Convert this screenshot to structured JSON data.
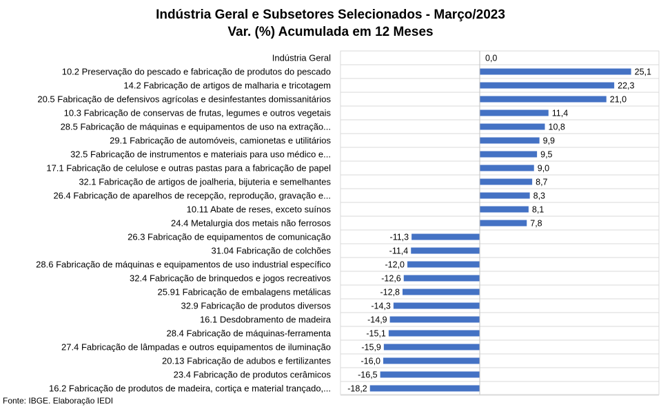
{
  "chart_data": {
    "type": "bar",
    "orientation": "horizontal",
    "title": "Indústria Geral e Subsetores Selecionados - Março/2023",
    "subtitle": "Var. (%) Acumulada em 12 Meses",
    "source": "Fonte: IBGE. Elaboração IEDI",
    "bar_color": "#4472c4",
    "grid": true,
    "categories": [
      "Indústria Geral",
      "10.2 Preservação do pescado e fabricação de produtos do pescado",
      "14.2 Fabricação de artigos de malharia e tricotagem",
      "20.5 Fabricação de defensivos agrícolas e desinfestantes domissanitários",
      "10.3 Fabricação de conservas de frutas, legumes e outros vegetais",
      "28.5 Fabricação de máquinas e equipamentos de uso na extração...",
      "29.1 Fabricação de automóveis, camionetas e utilitários",
      "32.5 Fabricação de instrumentos e materiais para uso médico e...",
      "17.1 Fabricação de celulose e outras pastas para a fabricação de papel",
      "32.1 Fabricação de artigos de joalheria, bijuteria e semelhantes",
      "26.4 Fabricação de aparelhos de recepção, reprodução, gravação e...",
      "10.11 Abate de reses, exceto suínos",
      "24.4 Metalurgia dos metais não ferrosos",
      "26.3 Fabricação de equipamentos de comunicação",
      "31.04 Fabricação de colchões",
      "28.6 Fabricação de máquinas e equipamentos de uso industrial específico",
      "32.4 Fabricação de brinquedos e jogos recreativos",
      "25.91 Fabricação de embalagens metálicas",
      "32.9 Fabricação de produtos diversos",
      "16.1 Desdobramento de madeira",
      "28.4 Fabricação de máquinas-ferramenta",
      "27.4 Fabricação de lâmpadas e outros equipamentos de iluminação",
      "20.13 Fabricação de adubos e fertilizantes",
      "23.4 Fabricação de produtos cerâmicos",
      "16.2 Fabricação de produtos de madeira, cortiça e material trançado,..."
    ],
    "values": [
      0.0,
      25.1,
      22.3,
      21.0,
      11.4,
      10.8,
      9.9,
      9.5,
      9.0,
      8.7,
      8.3,
      8.1,
      7.8,
      -11.3,
      -11.4,
      -12.0,
      -12.6,
      -12.8,
      -14.3,
      -14.9,
      -15.1,
      -15.9,
      -16.0,
      -16.5,
      -18.2
    ],
    "value_labels": [
      "0,0",
      "25,1",
      "22,3",
      "21,0",
      "11,4",
      "10,8",
      "9,9",
      "9,5",
      "9,0",
      "8,7",
      "8,3",
      "8,1",
      "7,8",
      "-11,3",
      "-11,4",
      "-12,0",
      "-12,6",
      "-12,8",
      "-14,3",
      "-14,9",
      "-15,1",
      "-15,9",
      "-16,0",
      "-16,5",
      "-18,2"
    ]
  }
}
